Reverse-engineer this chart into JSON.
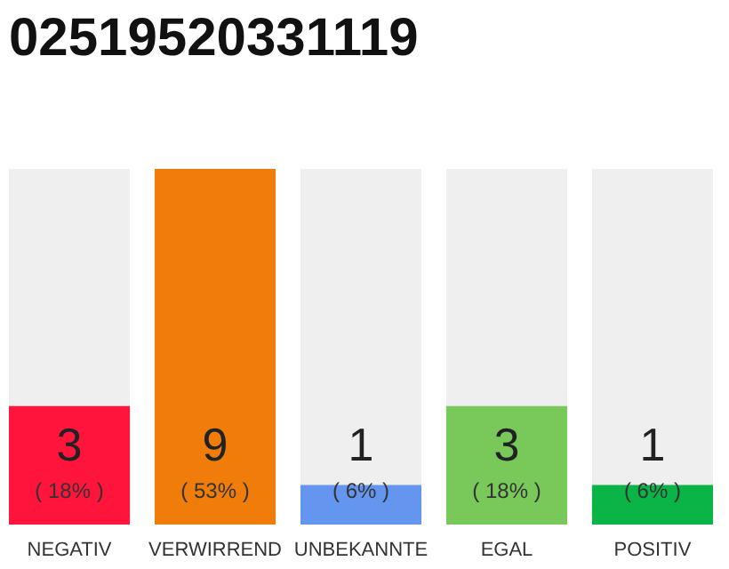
{
  "chart_data": {
    "type": "bar",
    "title": "02519520331119",
    "categories": [
      "NEGATIV",
      "VERWIRREND",
      "UNBEKANNTE",
      "EGAL",
      "POSITIV"
    ],
    "values": [
      3,
      9,
      1,
      3,
      1
    ],
    "colors": [
      "#ff143c",
      "#f07d0a",
      "#6496f0",
      "#78c85a",
      "#0ab446"
    ],
    "data_labels": true,
    "annotations": [
      "( 18% )",
      "( 53% )",
      "( 6% )",
      "( 18% )",
      "( 6% )"
    ]
  }
}
